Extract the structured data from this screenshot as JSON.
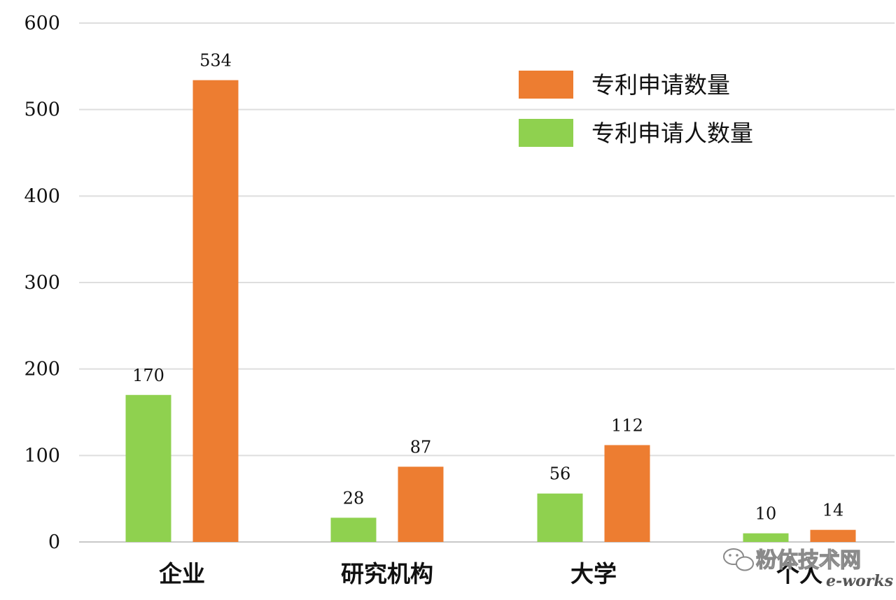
{
  "chart_data": {
    "type": "bar",
    "categories": [
      "企业",
      "研究机构",
      "大学",
      "个人"
    ],
    "series": [
      {
        "name": "专利申请人数量",
        "color": "#8fd14f",
        "values": [
          170,
          28,
          56,
          10
        ]
      },
      {
        "name": "专利申请数量",
        "color": "#ed7d31",
        "values": [
          534,
          87,
          112,
          14
        ]
      }
    ],
    "legend_order": [
      "专利申请数量",
      "专利申请人数量"
    ],
    "legend_position": "top-right",
    "ylim": [
      0,
      600
    ],
    "yticks": [
      "0",
      "100",
      "200",
      "300",
      "400",
      "500",
      "600"
    ],
    "grid": true,
    "title": "",
    "xlabel": "",
    "ylabel": ""
  },
  "watermark": {
    "text": "粉体技术网",
    "logo": "e-works",
    "icon": "wechat-icon"
  }
}
